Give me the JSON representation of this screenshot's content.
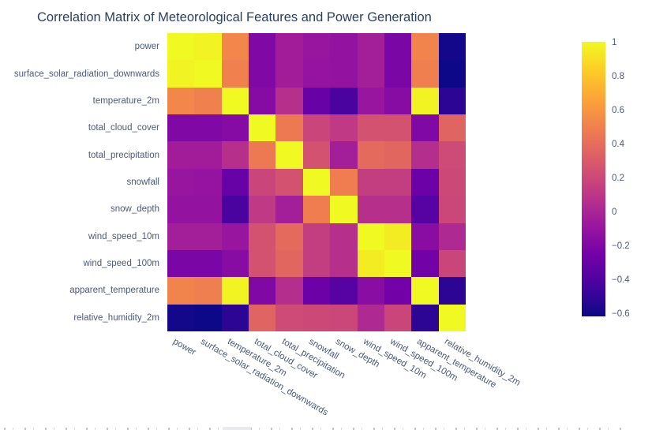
{
  "chart_data": {
    "type": "heatmap",
    "title": "Correlation Matrix of Meteorological Features and Power Generation",
    "colorscale_name": "plasma",
    "colorscale_stops": [
      [
        0.0,
        "#0d0887"
      ],
      [
        0.111,
        "#46039f"
      ],
      [
        0.222,
        "#7201a8"
      ],
      [
        0.333,
        "#9c179e"
      ],
      [
        0.444,
        "#bd3786"
      ],
      [
        0.556,
        "#d8576b"
      ],
      [
        0.667,
        "#ed7953"
      ],
      [
        0.778,
        "#fb9f3a"
      ],
      [
        0.889,
        "#fdca26"
      ],
      [
        1.0,
        "#f0f921"
      ]
    ],
    "zmin": -0.62,
    "zmax": 1,
    "categories": [
      "power",
      "surface_solar_radiation_downwards",
      "temperature_2m",
      "total_cloud_cover",
      "total_precipitation",
      "snowfall",
      "snow_depth",
      "wind_speed_10m",
      "wind_speed_100m",
      "apparent_temperature",
      "relative_humidity_2m"
    ],
    "matrix": [
      [
        1.0,
        0.98,
        0.52,
        -0.2,
        -0.05,
        -0.1,
        -0.12,
        -0.04,
        -0.22,
        0.51,
        -0.6
      ],
      [
        0.98,
        1.0,
        0.5,
        -0.2,
        -0.05,
        -0.11,
        -0.12,
        -0.04,
        -0.22,
        0.49,
        -0.62
      ],
      [
        0.52,
        0.5,
        1.0,
        -0.18,
        0.06,
        -0.31,
        -0.42,
        -0.1,
        -0.17,
        0.98,
        -0.52
      ],
      [
        -0.2,
        -0.2,
        -0.18,
        1.0,
        0.46,
        0.18,
        0.11,
        0.25,
        0.25,
        -0.2,
        0.35
      ],
      [
        -0.05,
        -0.05,
        0.06,
        0.46,
        1.0,
        0.25,
        -0.04,
        0.38,
        0.36,
        0.05,
        0.21
      ],
      [
        -0.1,
        -0.11,
        -0.31,
        0.18,
        0.25,
        1.0,
        0.48,
        0.14,
        0.14,
        -0.29,
        0.2
      ],
      [
        -0.12,
        -0.12,
        -0.42,
        0.11,
        -0.04,
        0.48,
        1.0,
        0.06,
        0.06,
        -0.37,
        0.19
      ],
      [
        -0.04,
        -0.04,
        -0.1,
        0.25,
        0.38,
        0.14,
        0.06,
        1.0,
        0.95,
        -0.16,
        0.02
      ],
      [
        -0.22,
        -0.22,
        -0.17,
        0.25,
        0.36,
        0.14,
        0.06,
        0.95,
        1.0,
        -0.26,
        0.18
      ],
      [
        0.51,
        0.49,
        0.98,
        -0.2,
        0.05,
        -0.29,
        -0.37,
        -0.16,
        -0.26,
        1.0,
        -0.52
      ],
      [
        -0.6,
        -0.62,
        -0.52,
        0.35,
        0.21,
        0.2,
        0.19,
        0.02,
        0.18,
        -0.52,
        1.0
      ]
    ],
    "colorbar_ticks": [
      {
        "value": 1.0,
        "label": "1"
      },
      {
        "value": 0.8,
        "label": "0.8"
      },
      {
        "value": 0.6,
        "label": "0.6"
      },
      {
        "value": 0.4,
        "label": "0.4"
      },
      {
        "value": 0.2,
        "label": "0.2"
      },
      {
        "value": 0.0,
        "label": "0"
      },
      {
        "value": -0.2,
        "label": "−0.2"
      },
      {
        "value": -0.4,
        "label": "−0.4"
      },
      {
        "value": -0.6,
        "label": "−0.6"
      }
    ],
    "layout": {
      "legend_position": "right-colorbar",
      "grid": false,
      "x_tick_angle_deg": 30
    }
  },
  "colors": {
    "title_text": "#2a3f5f",
    "tick_text": "#4a5a78",
    "background": "#ffffff"
  }
}
